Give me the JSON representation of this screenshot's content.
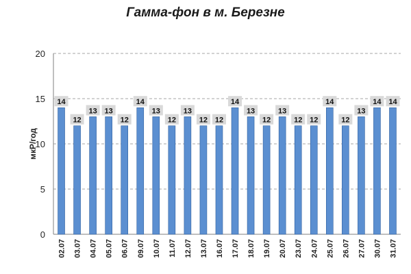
{
  "chart_data": {
    "type": "bar",
    "title": "Гамма-фон в м. Березне",
    "ylabel": "мкР/год",
    "xlabel": "",
    "ylim": [
      0,
      20
    ],
    "yticks": [
      0,
      5,
      10,
      15,
      20
    ],
    "grid": true,
    "legend": "none",
    "categories": [
      "02.07",
      "03.07",
      "04.07",
      "05.07",
      "06.07",
      "09.07",
      "10.07",
      "11.07",
      "12.07",
      "13.07",
      "16.07",
      "17.07",
      "18.07",
      "19.07",
      "20.07",
      "23.07",
      "24.07",
      "25.07",
      "26.07",
      "27.07",
      "30.07",
      "31.07"
    ],
    "values": [
      14,
      12,
      13,
      13,
      12,
      14,
      13,
      12,
      13,
      12,
      12,
      14,
      13,
      12,
      13,
      12,
      12,
      14,
      12,
      13,
      14,
      14
    ],
    "colors": {
      "bar_fill": "#5b8fd1",
      "bar_edge": "#2f5f9e",
      "label_bg": "#d9d9d9",
      "grid": "#a6a6a6",
      "axis": "#7f7f7f"
    }
  }
}
